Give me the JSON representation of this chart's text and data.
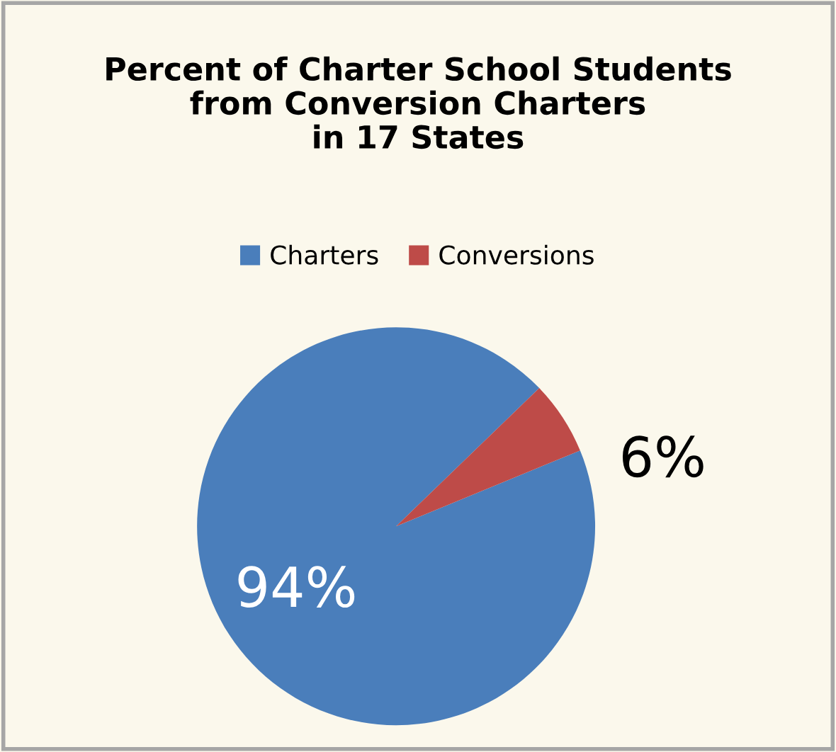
{
  "chart_data": {
    "type": "pie",
    "title": "Percent of Charter School Students\nfrom Conversion Charters\nin 17 States",
    "categories": [
      "Charters",
      "Conversions"
    ],
    "values": [
      94,
      6
    ],
    "colors": [
      "#4a7ebb",
      "#be4b48"
    ],
    "value_labels": [
      "94%",
      "6%"
    ],
    "legend": "top"
  }
}
